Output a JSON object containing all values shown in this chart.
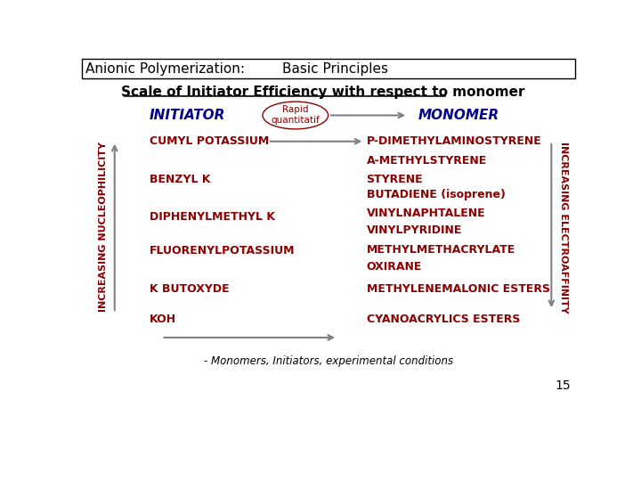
{
  "header_left": "Anionic Polymerization:",
  "header_right": "Basic Principles",
  "scale_title": "Scale of Initiator Efficiency with respect to monomer",
  "initiator_label": "INITIATOR",
  "monomer_label": "MONOMER",
  "rapid_label": "Rapid\nquantitatif",
  "initiators": [
    "CUMYL POTASSIUM",
    "BENZYL K",
    "DIPHENYLMETHYL K",
    "FLUORENYLPOTASSIUM",
    "K BUTOXYDE",
    "KOH"
  ],
  "monomers": [
    "P-DIMETHYLAMINOSTYRENE",
    "A-METHYLSTYRENE",
    "STYRENE",
    "BUTADIENE (isoprene)",
    "VINYLNAPHTALENE",
    "VINYLPYRIDINE",
    "METHYLMETHACRYLATE",
    "OXIRANE",
    "METHYLENEMALONIC ESTERS",
    "CYANOACRYLICS ESTERS"
  ],
  "left_axis_label": "INCREASING NUCLEOPHILICITY",
  "right_axis_label": "INCREASING ELECTROAFFINITY",
  "footer_label": "- Monomers, Initiators, experimental conditions",
  "page_number": "15",
  "header_color": "#000000",
  "initiator_label_color": "#00008B",
  "monomer_label_color": "#00008B",
  "initiator_color": "#8B0000",
  "monomer_color": "#8B0000",
  "axis_label_color": "#8B0000",
  "rapid_color": "#8B0000",
  "arrow_color": "#808080",
  "scale_title_color": "#000000",
  "bg_color": "#ffffff"
}
